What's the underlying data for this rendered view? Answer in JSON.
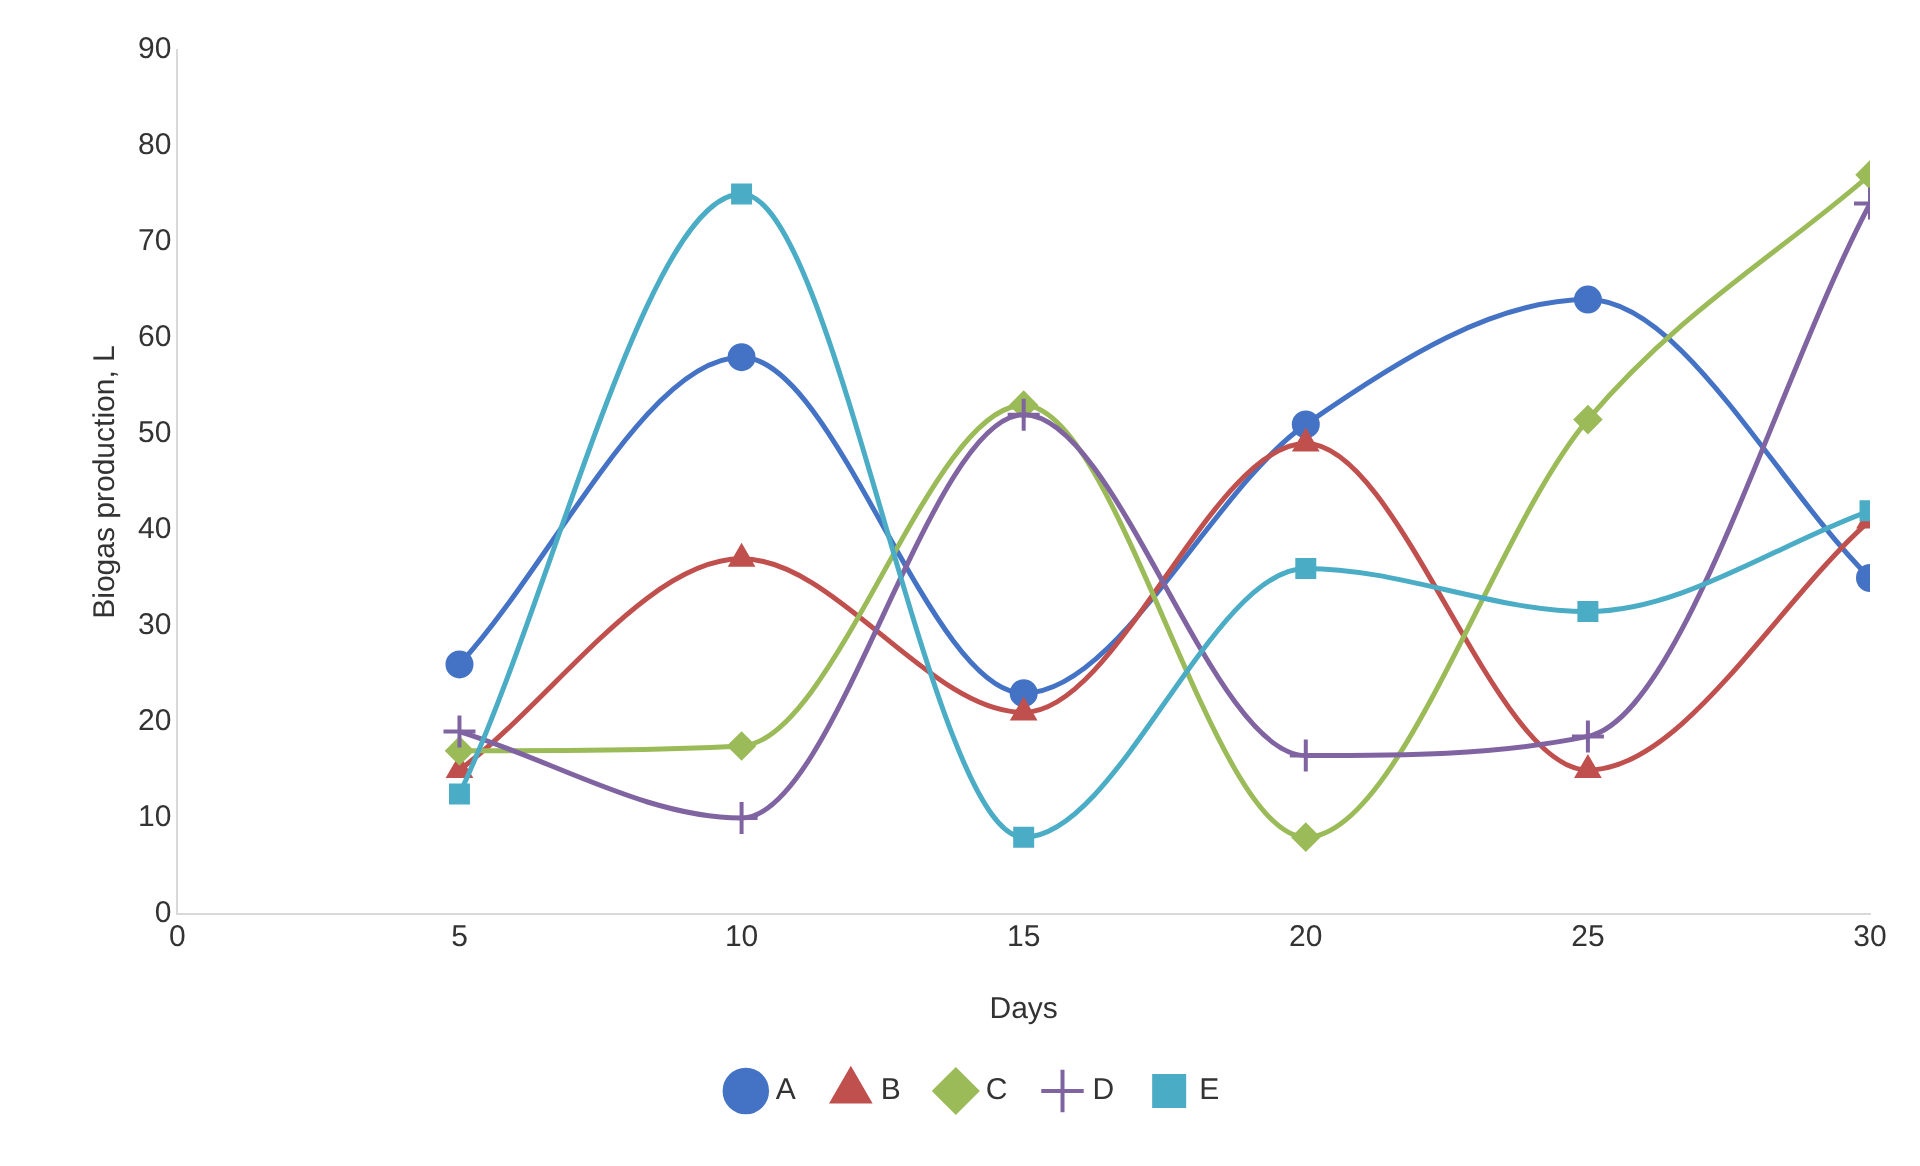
{
  "chart_data": {
    "type": "line",
    "xlabel": "Days",
    "ylabel": "Biogas production, L",
    "x": [
      5,
      10,
      15,
      20,
      25,
      30
    ],
    "xlim": [
      0,
      30
    ],
    "xticks": [
      0,
      5,
      10,
      15,
      20,
      25,
      30
    ],
    "ylim": [
      0,
      90
    ],
    "yticks": [
      0,
      10,
      20,
      30,
      40,
      50,
      60,
      70,
      80,
      90
    ],
    "grid": false,
    "legend": "bottom",
    "series": [
      {
        "name": "A",
        "color": "#4472c4",
        "marker": "circle",
        "values": [
          26,
          58,
          23,
          51,
          64,
          35
        ]
      },
      {
        "name": "B",
        "color": "#c0504d",
        "marker": "triangle",
        "values": [
          15,
          37,
          21,
          49,
          15,
          41
        ]
      },
      {
        "name": "C",
        "color": "#9bbb59",
        "marker": "diamond",
        "values": [
          17,
          17.5,
          53,
          8,
          51.5,
          77
        ]
      },
      {
        "name": "D",
        "color": "#8064a2",
        "marker": "cross",
        "values": [
          19,
          10,
          52,
          16.5,
          18.5,
          74
        ]
      },
      {
        "name": "E",
        "color": "#4bacc6",
        "marker": "square",
        "values": [
          12.5,
          75,
          8,
          36,
          31.5,
          42
        ]
      }
    ]
  }
}
